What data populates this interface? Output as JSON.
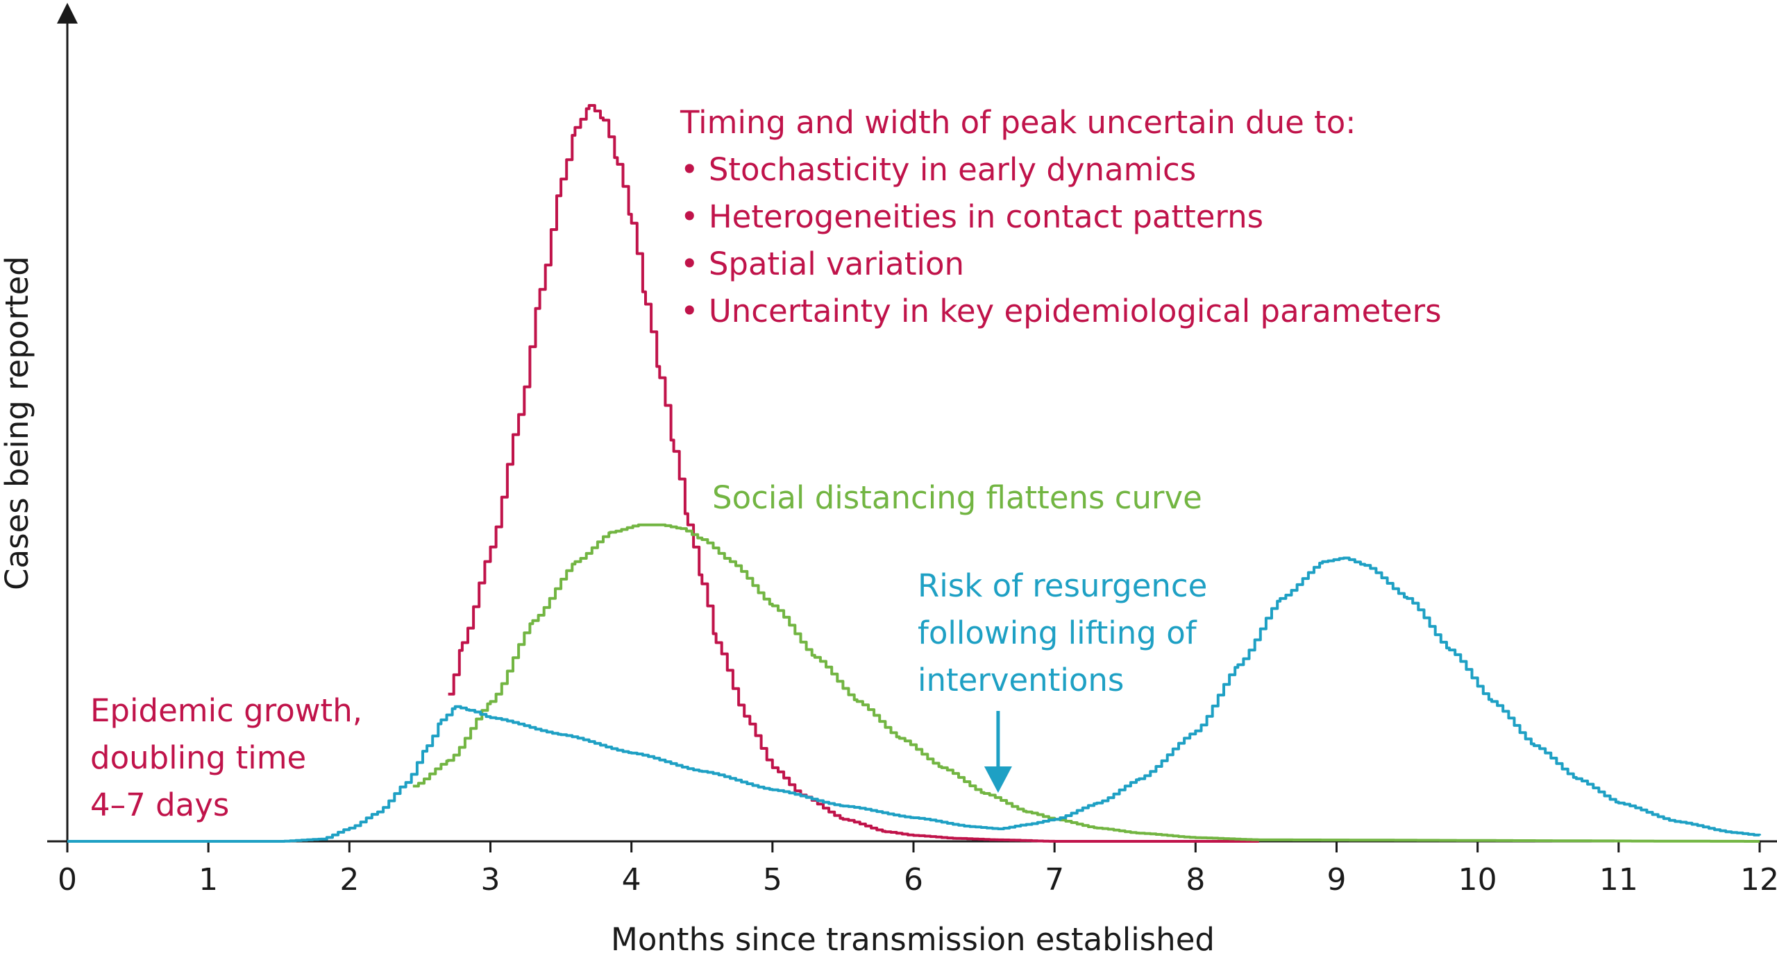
{
  "chart_data": {
    "type": "line",
    "title": "",
    "xlabel": "Months since transmission established",
    "ylabel": "Cases being reported",
    "xlim": [
      0,
      12
    ],
    "ylim": [
      0,
      1
    ],
    "xticks": [
      "0",
      "1",
      "2",
      "3",
      "4",
      "5",
      "6",
      "7",
      "8",
      "9",
      "10",
      "11",
      "12"
    ],
    "yticks": [],
    "grid": false,
    "legend": "none",
    "colors": {
      "red": "#c0134a",
      "green": "#72b542",
      "blue": "#1ea0c4",
      "axis": "#1a1a1a"
    },
    "series": [
      {
        "color": "#c0134a",
        "x": [
          2.7,
          2.8,
          3.0,
          3.2,
          3.35,
          3.5,
          3.6,
          3.7,
          3.8,
          3.9,
          4.0,
          4.1,
          4.2,
          4.3,
          4.4,
          4.5,
          4.6,
          4.8,
          5.0,
          5.2,
          5.5,
          5.8,
          6.0,
          6.3,
          6.6,
          7.0,
          8.0,
          8.45
        ],
        "y": [
          0.2,
          0.27,
          0.4,
          0.58,
          0.75,
          0.9,
          0.97,
          1.0,
          0.98,
          0.92,
          0.84,
          0.73,
          0.63,
          0.53,
          0.43,
          0.35,
          0.27,
          0.17,
          0.1,
          0.063,
          0.03,
          0.013,
          0.008,
          0.004,
          0.002,
          0.0,
          0.0,
          0.0
        ]
      },
      {
        "color": "#72b542",
        "x": [
          2.45,
          2.7,
          3.0,
          3.3,
          3.6,
          3.85,
          4.05,
          4.2,
          4.35,
          4.5,
          4.7,
          5.0,
          5.3,
          5.6,
          5.9,
          6.2,
          6.5,
          6.8,
          7.0,
          7.3,
          7.6,
          8.0,
          8.45,
          12.0
        ],
        "y": [
          0.075,
          0.11,
          0.19,
          0.3,
          0.38,
          0.42,
          0.43,
          0.43,
          0.425,
          0.41,
          0.38,
          0.32,
          0.25,
          0.19,
          0.14,
          0.1,
          0.065,
          0.04,
          0.03,
          0.018,
          0.011,
          0.005,
          0.002,
          0.0
        ]
      },
      {
        "color": "#1ea0c4",
        "x": [
          0.0,
          1.5,
          1.8,
          2.0,
          2.2,
          2.4,
          2.55,
          2.65,
          2.75,
          2.85,
          3.0,
          3.5,
          4.0,
          4.5,
          5.0,
          5.5,
          6.0,
          6.4,
          6.6,
          6.8,
          7.0,
          7.3,
          7.6,
          8.0,
          8.3,
          8.6,
          8.9,
          9.05,
          9.2,
          9.5,
          9.8,
          10.1,
          10.4,
          10.7,
          11.0,
          11.4,
          11.8,
          12.0
        ],
        "y": [
          0.0,
          0.0,
          0.003,
          0.018,
          0.04,
          0.08,
          0.13,
          0.165,
          0.183,
          0.178,
          0.168,
          0.145,
          0.12,
          0.095,
          0.07,
          0.048,
          0.032,
          0.02,
          0.017,
          0.023,
          0.03,
          0.052,
          0.085,
          0.15,
          0.24,
          0.33,
          0.38,
          0.385,
          0.375,
          0.33,
          0.26,
          0.19,
          0.13,
          0.085,
          0.052,
          0.027,
          0.012,
          0.008
        ]
      }
    ],
    "annotations": [
      {
        "color": "#c0134a",
        "lines": [
          "Timing and width of peak uncertain due to:",
          "• Stochasticity in early dynamics",
          "• Heterogeneities in contact patterns",
          "• Spatial variation",
          "• Uncertainty in key epidemiological parameters"
        ]
      },
      {
        "color": "#72b542",
        "lines": [
          "Social distancing flattens curve"
        ]
      },
      {
        "color": "#1ea0c4",
        "lines": [
          "Risk of resurgence",
          "following lifting of",
          "interventions"
        ]
      },
      {
        "color": "#c0134a",
        "lines": [
          "Epidemic growth,",
          "doubling time",
          "4–7 days"
        ]
      }
    ],
    "arrow": {
      "color": "#1ea0c4",
      "x": 6.6
    }
  }
}
